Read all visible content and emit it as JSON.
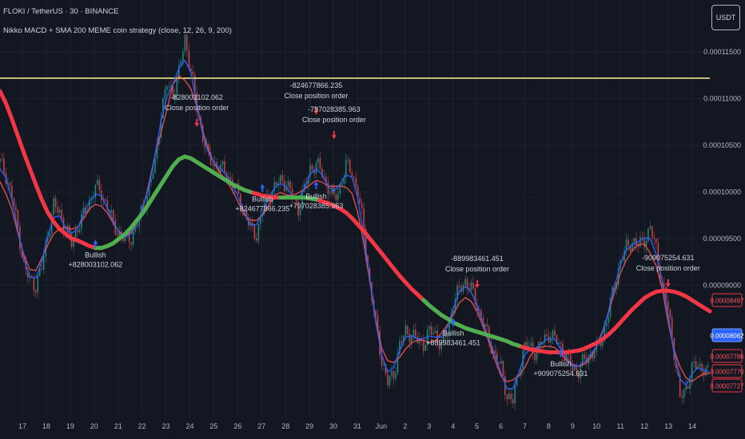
{
  "header": {
    "symbol_line": "FLOKI / TetherUS · 30 · BINANCE",
    "strategy_line": "Nikko MACD + SMA 200 MEME coin strategy (close, 12, 26, 9, 200)",
    "currency_button": "USDT"
  },
  "colors": {
    "background": "#131722",
    "grid": "#1e222d",
    "candle_up": "#26a69a",
    "candle_down": "#ef5350",
    "sma_bear": "#f23645",
    "sma_bull": "#4caf50",
    "macd_fast": "#2962ff",
    "macd_slow": "#ef5350",
    "resistance_line": "#f0e68c",
    "entry_arrow": "#2962ff",
    "exit_arrow": "#f23645",
    "current_price_bg": "#2962ff",
    "price_box_border": "#f23645"
  },
  "chart_data": {
    "type": "line",
    "title": "",
    "x_tick_labels": [
      "17",
      "18",
      "19",
      "20",
      "21",
      "22",
      "23",
      "24",
      "25",
      "26",
      "27",
      "28",
      "29",
      "30",
      "31",
      "Jun",
      "2",
      "3",
      "4",
      "5",
      "6",
      "7",
      "8",
      "9",
      "10",
      "11",
      "12",
      "13",
      "14"
    ],
    "y_tick_labels": [
      "0.00011500",
      "0.00011000",
      "0.00010500",
      "0.00010000",
      "0.00009500",
      "0.00009000"
    ],
    "y_ticks": [
      0.000115,
      0.00011,
      0.000105,
      0.0001,
      9.5e-05,
      9e-05
    ],
    "ylim": [
      7.65e-05,
      0.0001187
    ],
    "horizontal_line": 0.0001122,
    "price_x": [
      0,
      1,
      2,
      3,
      4,
      5,
      6,
      7,
      8,
      9,
      10,
      11,
      12,
      13,
      14,
      15,
      16,
      17,
      18,
      19,
      20,
      21,
      22,
      23,
      24,
      25,
      26,
      27,
      28,
      29,
      30,
      31,
      32,
      33,
      34,
      35,
      36,
      37,
      38,
      39,
      40,
      41,
      42,
      43,
      44,
      45,
      46,
      47,
      48,
      49,
      50,
      51,
      52,
      53,
      54,
      55,
      56,
      57,
      58,
      59,
      60,
      61,
      62,
      63,
      64,
      65,
      66,
      67,
      68,
      69,
      70,
      71,
      72,
      73,
      74,
      75,
      76,
      77,
      78,
      79,
      80,
      81,
      82,
      83,
      84,
      85,
      86,
      87,
      88,
      89,
      90,
      91,
      92,
      93,
      94,
      95,
      96,
      97,
      98,
      99,
      100,
      101,
      102,
      103,
      104,
      105,
      106,
      107,
      108,
      109,
      110,
      111,
      112,
      113,
      114,
      115,
      116,
      117,
      118,
      119
    ],
    "series": [
      {
        "name": "price",
        "values": [
          0.0001032,
          0.0001018,
          9.95e-05,
          9.62e-05,
          9.2e-05,
          9.05e-05,
          9e-05,
          9.18e-05,
          9.55e-05,
          9.85e-05,
          9.78e-05,
          9.6e-05,
          9.45e-05,
          9.62e-05,
          9.75e-05,
          9.9e-05,
          0.0001005,
          9.98e-05,
          9.85e-05,
          9.65e-05,
          9.55e-05,
          9.48e-05,
          9.52e-05,
          9.65e-05,
          9.85e-05,
          0.0001005,
          0.000103,
          0.0001085,
          0.0001115,
          0.0001105,
          0.0001128,
          0.0001165,
          0.000113,
          0.000109,
          0.000106,
          0.0001035,
          0.000103,
          0.0001025,
          0.000102,
          0.0001008,
          9.95e-05,
          9.78e-05,
          9.6e-05,
          9.55e-05,
          9.8e-05,
          9.95e-05,
          0.0001005,
          0.0001012,
          0.000101,
          9.95e-05,
          9.82e-05,
          0.0001002,
          0.0001025,
          0.000103,
          0.000102,
          0.0001005,
          9.92e-05,
          0.0001005,
          0.0001028,
          0.0001022,
          9.98e-05,
          9.6e-05,
          9e-05,
          8.6e-05,
          8.2e-05,
          7.95e-05,
          8.05e-05,
          8.35e-05,
          8.5e-05,
          8.48e-05,
          8.4e-05,
          8.38e-05,
          8.5e-05,
          8.48e-05,
          8.35e-05,
          8.5e-05,
          8.8e-05,
          8.95e-05,
          9.05e-05,
          8.95e-05,
          8.78e-05,
          8.6e-05,
          8.4e-05,
          8.25e-05,
          8.1e-05,
          7.82e-05,
          7.75e-05,
          8.1e-05,
          8.35e-05,
          8.32e-05,
          8.28e-05,
          8.4e-05,
          8.48e-05,
          8.42e-05,
          8.35e-05,
          8.2e-05,
          8.12e-05,
          8.08e-05,
          8.2e-05,
          8.25e-05,
          8.32e-05,
          8.45e-05,
          8.7e-05,
          9e-05,
          9.25e-05,
          9.4e-05,
          9.48e-05,
          9.42e-05,
          9.5e-05,
          9.6e-05,
          9.4e-05,
          9e-05,
          8.75e-05,
          8.3e-05,
          7.78e-05,
          7.9e-05,
          8.1e-05,
          8.15e-05,
          8.1e-05,
          8.02e-05
        ]
      },
      {
        "name": "SMA 200",
        "values": [
          0.0001108,
          0.0001095,
          0.0001078,
          0.000106,
          0.0001042,
          0.0001025,
          0.0001008,
          9.92e-05,
          9.78e-05,
          9.68e-05,
          9.6e-05,
          9.55e-05,
          9.5e-05,
          9.48e-05,
          9.45e-05,
          9.42e-05,
          9.4e-05,
          9.4e-05,
          9.42e-05,
          9.45e-05,
          9.5e-05,
          9.55e-05,
          9.62e-05,
          9.7e-05,
          9.78e-05,
          9.88e-05,
          9.98e-05,
          0.0001008,
          0.0001018,
          0.0001028,
          0.0001035,
          0.0001038,
          0.0001036,
          0.0001032,
          0.0001028,
          0.0001024,
          0.000102,
          0.0001016,
          0.0001012,
          0.0001008,
          0.0001005,
          0.0001002,
          0.0001,
          9.98e-05,
          9.96e-05,
          9.95e-05,
          9.94e-05,
          9.94e-05,
          9.94e-05,
          9.94e-05,
          9.94e-05,
          9.94e-05,
          9.93e-05,
          9.92e-05,
          9.9e-05,
          9.88e-05,
          9.85e-05,
          9.82e-05,
          9.78e-05,
          9.72e-05,
          9.65e-05,
          9.58e-05,
          9.5e-05,
          9.42e-05,
          9.34e-05,
          9.26e-05,
          9.18e-05,
          9.1e-05,
          9.03e-05,
          8.96e-05,
          8.9e-05,
          8.84e-05,
          8.78e-05,
          8.73e-05,
          8.68e-05,
          8.64e-05,
          8.6e-05,
          8.57e-05,
          8.54e-05,
          8.52e-05,
          8.5e-05,
          8.48e-05,
          8.46e-05,
          8.44e-05,
          8.42e-05,
          8.4e-05,
          8.37e-05,
          8.35e-05,
          8.33e-05,
          8.31e-05,
          8.3e-05,
          8.29e-05,
          8.28e-05,
          8.28e-05,
          8.28e-05,
          8.28e-05,
          8.29e-05,
          8.3e-05,
          8.32e-05,
          8.35e-05,
          8.38e-05,
          8.42e-05,
          8.47e-05,
          8.53e-05,
          8.6e-05,
          8.67e-05,
          8.74e-05,
          8.8e-05,
          8.86e-05,
          8.9e-05,
          8.93e-05,
          8.94e-05,
          8.94e-05,
          8.93e-05,
          8.91e-05,
          8.88e-05,
          8.84e-05,
          8.8e-05,
          8.76e-05,
          8.72e-05
        ]
      }
    ],
    "sma_bull_x_ranges": [
      [
        20,
        52
      ],
      [
        59,
        66
      ],
      [
        88,
        108
      ]
    ],
    "price_labels": [
      "0.00008497",
      "0.00008062",
      "0.00007786",
      "0.00007770",
      "0.00007727"
    ],
    "price_label_values": [
      8.497e-05,
      8.062e-05,
      7.786e-05,
      7.77e-05,
      7.727e-05
    ],
    "trade_annotations": [
      {
        "type": "entry",
        "x": 20,
        "y": 9.52e-05,
        "line1": "Bullish",
        "line2": "+828003102.062"
      },
      {
        "type": "exit",
        "x": 41,
        "y": 0.0001068,
        "line1": "-828003102.062",
        "line2": "Close position order"
      },
      {
        "type": "entry",
        "x": 55,
        "y": 0.0001012,
        "line1": "Bullish",
        "line2": "+824677866.235"
      },
      {
        "type": "exit",
        "x": 66,
        "y": 0.0001081,
        "line1": "-824677866.235",
        "line2": "Close position order"
      },
      {
        "type": "entry",
        "x": 66,
        "y": 0.0001015,
        "line1": "Bullish",
        "line2": "+797028385.963"
      },
      {
        "type": "exit",
        "x": 70,
        "y": 0.0001055,
        "line1": "-797028385.963",
        "line2": "Close position order"
      },
      {
        "type": "entry",
        "x": 95,
        "y": 8.68e-05,
        "line1": "Bullish",
        "line2": "+889983461.451"
      },
      {
        "type": "exit",
        "x": 100,
        "y": 8.95e-05,
        "line1": "-889983461.451",
        "line2": "Close position order"
      },
      {
        "type": "entry",
        "x": 117,
        "y": 8.35e-05,
        "line1": "Bullish",
        "line2": "+909075254.631"
      },
      {
        "type": "exit",
        "x": 139,
        "y": 8.96e-05,
        "line1": "-909075254.631",
        "line2": "Close position order"
      }
    ]
  }
}
